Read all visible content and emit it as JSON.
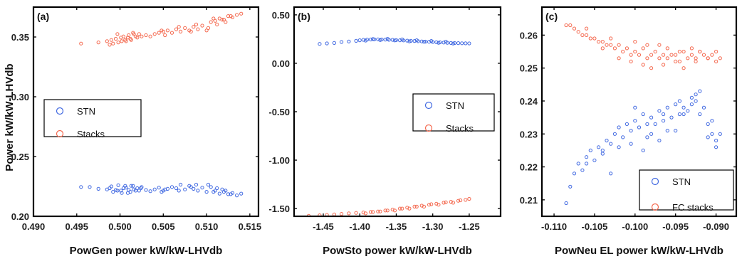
{
  "ylabel_shared": "Power kW/kW-LHVdb",
  "colors": {
    "stn": "#4169e1",
    "stacks": "#f4694f",
    "axis": "#000000"
  },
  "chart_data": [
    {
      "type": "scatter",
      "panel_label": "(a)",
      "xlabel": "PowGen power kW/kW-LHVdb",
      "ylabel": "Power kW/kW-LHVdb",
      "xlim": [
        0.49,
        0.516
      ],
      "ylim": [
        0.2,
        0.375
      ],
      "xticks": [
        0.49,
        0.495,
        0.5,
        0.505,
        0.51,
        0.515
      ],
      "xtick_labels": [
        "0.490",
        "0.495",
        "0.500",
        "0.505",
        "0.510",
        "0.515"
      ],
      "yticks": [
        0.2,
        0.25,
        0.3,
        0.35
      ],
      "ytick_labels": [
        "0.20",
        "0.25",
        "0.30",
        "0.35"
      ],
      "legend": {
        "position": "center-left",
        "entries": [
          "STN",
          "Stacks"
        ]
      },
      "series": [
        {
          "name": "STN",
          "color": "#4169e1",
          "x": [
            0.4955,
            0.4965,
            0.4975,
            0.4985,
            0.499,
            0.4995,
            0.4998,
            0.5001,
            0.5004,
            0.5007,
            0.501,
            0.5013,
            0.5016,
            0.502,
            0.5025,
            0.503,
            0.5035,
            0.504,
            0.5045,
            0.505,
            0.5055,
            0.506,
            0.5065,
            0.507,
            0.5075,
            0.508,
            0.5085,
            0.509,
            0.5095,
            0.51,
            0.5105,
            0.511,
            0.5115,
            0.512,
            0.5125,
            0.513,
            0.5135,
            0.514,
            0.4992,
            0.5002,
            0.5012,
            0.5022,
            0.5052,
            0.5082,
            0.5102,
            0.5112,
            0.5122,
            0.4988,
            0.5006,
            0.5018,
            0.5048,
            0.5068,
            0.5088,
            0.5108,
            0.5118,
            0.5128,
            0.5015,
            0.5009,
            0.4997,
            0.5024
          ],
          "y": [
            0.2245,
            0.2245,
            0.223,
            0.2225,
            0.225,
            0.222,
            0.226,
            0.2215,
            0.2235,
            0.224,
            0.222,
            0.2255,
            0.2225,
            0.2235,
            0.2245,
            0.222,
            0.221,
            0.2225,
            0.224,
            0.2215,
            0.223,
            0.2245,
            0.2235,
            0.2265,
            0.2225,
            0.2255,
            0.223,
            0.2215,
            0.224,
            0.2205,
            0.2245,
            0.2215,
            0.219,
            0.2205,
            0.2185,
            0.2195,
            0.2175,
            0.219,
            0.2205,
            0.2195,
            0.2205,
            0.2215,
            0.2225,
            0.2245,
            0.2265,
            0.2235,
            0.2215,
            0.2235,
            0.2255,
            0.2215,
            0.2205,
            0.2215,
            0.2265,
            0.2205,
            0.2225,
            0.2185,
            0.2255,
            0.2195,
            0.2215,
            0.2235
          ]
        },
        {
          "name": "Stacks",
          "color": "#f4694f",
          "x": [
            0.4955,
            0.4975,
            0.4985,
            0.499,
            0.4995,
            0.4998,
            0.5001,
            0.5004,
            0.5007,
            0.501,
            0.5013,
            0.5016,
            0.502,
            0.5025,
            0.503,
            0.5035,
            0.504,
            0.5045,
            0.505,
            0.5055,
            0.506,
            0.5065,
            0.507,
            0.5075,
            0.508,
            0.5085,
            0.509,
            0.5095,
            0.51,
            0.5105,
            0.511,
            0.5115,
            0.512,
            0.5125,
            0.513,
            0.5135,
            0.514,
            0.4992,
            0.5002,
            0.5012,
            0.5022,
            0.5052,
            0.5082,
            0.5102,
            0.5112,
            0.5122,
            0.4988,
            0.5006,
            0.5018,
            0.5048,
            0.5068,
            0.5088,
            0.5108,
            0.5118,
            0.5128,
            0.5015,
            0.5009,
            0.4997
          ],
          "y": [
            0.3445,
            0.3455,
            0.3465,
            0.3475,
            0.3485,
            0.3455,
            0.3495,
            0.3505,
            0.3465,
            0.3515,
            0.3475,
            0.3525,
            0.3495,
            0.3505,
            0.3515,
            0.3505,
            0.3525,
            0.3535,
            0.3545,
            0.3555,
            0.3535,
            0.3565,
            0.3545,
            0.3575,
            0.3555,
            0.3585,
            0.3565,
            0.3595,
            0.3555,
            0.3625,
            0.3635,
            0.3655,
            0.3645,
            0.3675,
            0.3665,
            0.3685,
            0.3695,
            0.3445,
            0.3465,
            0.3485,
            0.3525,
            0.3515,
            0.3545,
            0.3575,
            0.3605,
            0.3625,
            0.3435,
            0.3475,
            0.3505,
            0.3555,
            0.3585,
            0.3605,
            0.3655,
            0.3645,
            0.3675,
            0.3535,
            0.3495,
            0.3525
          ]
        }
      ]
    },
    {
      "type": "scatter",
      "panel_label": "(b)",
      "xlabel": "PowSto power kW/kW-LHVdb",
      "xlim": [
        -1.49,
        -1.207
      ],
      "ylim": [
        -1.58,
        0.58
      ],
      "xticks": [
        -1.45,
        -1.4,
        -1.35,
        -1.3,
        -1.25
      ],
      "xtick_labels": [
        "-1.45",
        "-1.40",
        "-1.35",
        "-1.30",
        "-1.25"
      ],
      "yticks": [
        -1.5,
        -1.0,
        -0.5,
        0.0,
        0.5
      ],
      "ytick_labels": [
        "-1.50",
        "-1.00",
        "-0.50",
        "0.00",
        "0.50"
      ],
      "legend": {
        "position": "center-right",
        "entries": [
          "STN",
          "Stacks"
        ]
      },
      "series": [
        {
          "name": "STN",
          "color": "#4169e1",
          "x": [
            -1.455,
            -1.445,
            -1.435,
            -1.425,
            -1.415,
            -1.405,
            -1.4,
            -1.395,
            -1.39,
            -1.385,
            -1.38,
            -1.375,
            -1.37,
            -1.365,
            -1.36,
            -1.355,
            -1.35,
            -1.345,
            -1.34,
            -1.335,
            -1.33,
            -1.325,
            -1.32,
            -1.315,
            -1.31,
            -1.305,
            -1.3,
            -1.295,
            -1.29,
            -1.285,
            -1.28,
            -1.275,
            -1.27,
            -1.265,
            -1.26,
            -1.255,
            -1.25,
            -1.392,
            -1.372,
            -1.352,
            -1.332,
            -1.312,
            -1.292,
            -1.272,
            -1.382,
            -1.362,
            -1.342,
            -1.322,
            -1.302,
            -1.282
          ],
          "y": [
            0.2,
            0.205,
            0.21,
            0.22,
            0.225,
            0.232,
            0.238,
            0.242,
            0.245,
            0.246,
            0.247,
            0.247,
            0.246,
            0.245,
            0.243,
            0.242,
            0.24,
            0.238,
            0.236,
            0.234,
            0.232,
            0.23,
            0.228,
            0.226,
            0.224,
            0.222,
            0.22,
            0.218,
            0.216,
            0.214,
            0.212,
            0.21,
            0.209,
            0.208,
            0.207,
            0.206,
            0.205,
            0.235,
            0.24,
            0.236,
            0.226,
            0.222,
            0.212,
            0.204,
            0.25,
            0.252,
            0.247,
            0.238,
            0.23,
            0.224
          ]
        },
        {
          "name": "Stacks",
          "color": "#f4694f",
          "x": [
            -1.47,
            -1.455,
            -1.445,
            -1.435,
            -1.425,
            -1.415,
            -1.405,
            -1.395,
            -1.385,
            -1.375,
            -1.365,
            -1.355,
            -1.345,
            -1.335,
            -1.325,
            -1.315,
            -1.305,
            -1.295,
            -1.285,
            -1.275,
            -1.265,
            -1.255,
            -1.25,
            -1.392,
            -1.372,
            -1.352,
            -1.332,
            -1.312,
            -1.292,
            -1.272,
            -1.382,
            -1.362,
            -1.342,
            -1.322,
            -1.302,
            -1.282,
            -1.262
          ],
          "y": [
            -1.575,
            -1.57,
            -1.565,
            -1.56,
            -1.555,
            -1.55,
            -1.545,
            -1.54,
            -1.535,
            -1.53,
            -1.52,
            -1.51,
            -1.5,
            -1.49,
            -1.48,
            -1.47,
            -1.46,
            -1.45,
            -1.44,
            -1.43,
            -1.42,
            -1.41,
            -1.4,
            -1.55,
            -1.53,
            -1.52,
            -1.5,
            -1.48,
            -1.46,
            -1.44,
            -1.535,
            -1.52,
            -1.5,
            -1.48,
            -1.455,
            -1.435,
            -1.415
          ]
        }
      ]
    },
    {
      "type": "scatter",
      "panel_label": "(c)",
      "xlabel": "PowNeu EL power kW/kW-LHVdb",
      "xlim": [
        -0.1115,
        -0.0875
      ],
      "ylim": [
        0.205,
        0.2685
      ],
      "xticks": [
        -0.11,
        -0.105,
        -0.1,
        -0.095,
        -0.09
      ],
      "xtick_labels": [
        "-0.110",
        "-0.105",
        "-0.100",
        "-0.095",
        "-0.090"
      ],
      "yticks": [
        0.21,
        0.22,
        0.23,
        0.24,
        0.25,
        0.26
      ],
      "ytick_labels": [
        "0.21",
        "0.22",
        "0.23",
        "0.24",
        "0.25",
        "0.26"
      ],
      "legend": {
        "position": "bottom-right",
        "entries": [
          "STN",
          "FC stacks"
        ]
      },
      "series": [
        {
          "name": "STN",
          "color": "#4169e1",
          "x": [
            -0.1085,
            -0.108,
            -0.1075,
            -0.107,
            -0.1065,
            -0.106,
            -0.1055,
            -0.105,
            -0.1045,
            -0.104,
            -0.1035,
            -0.103,
            -0.1025,
            -0.102,
            -0.1015,
            -0.101,
            -0.1005,
            -0.1,
            -0.0995,
            -0.099,
            -0.0985,
            -0.098,
            -0.0975,
            -0.097,
            -0.0965,
            -0.096,
            -0.0955,
            -0.095,
            -0.0945,
            -0.094,
            -0.0935,
            -0.093,
            -0.0925,
            -0.092,
            -0.0915,
            -0.091,
            -0.0905,
            -0.09,
            -0.0895,
            -0.106,
            -0.104,
            -0.102,
            -0.1,
            -0.098,
            -0.096,
            -0.094,
            -0.092,
            -0.09,
            -0.103,
            -0.099,
            -0.097,
            -0.095,
            -0.093,
            -0.091,
            -0.1005,
            -0.0985,
            -0.0965,
            -0.0945,
            -0.0925,
            -0.0905
          ],
          "y": [
            0.209,
            0.214,
            0.218,
            0.221,
            0.219,
            0.223,
            0.225,
            0.222,
            0.226,
            0.225,
            0.228,
            0.227,
            0.23,
            0.232,
            0.229,
            0.233,
            0.231,
            0.234,
            0.232,
            0.236,
            0.229,
            0.235,
            0.233,
            0.237,
            0.234,
            0.238,
            0.235,
            0.239,
            0.236,
            0.238,
            0.237,
            0.239,
            0.24,
            0.236,
            0.238,
            0.229,
            0.234,
            0.228,
            0.23,
            0.221,
            0.224,
            0.226,
            0.238,
            0.23,
            0.231,
            0.236,
            0.243,
            0.226,
            0.218,
            0.225,
            0.228,
            0.231,
            0.241,
            0.233,
            0.227,
            0.233,
            0.236,
            0.24,
            0.242,
            0.23
          ]
        },
        {
          "name": "FC stacks",
          "color": "#f4694f",
          "x": [
            -0.1085,
            -0.108,
            -0.1075,
            -0.107,
            -0.1065,
            -0.106,
            -0.1055,
            -0.105,
            -0.1045,
            -0.104,
            -0.1035,
            -0.103,
            -0.1025,
            -0.102,
            -0.1015,
            -0.101,
            -0.1005,
            -0.1,
            -0.0995,
            -0.099,
            -0.0985,
            -0.098,
            -0.0975,
            -0.097,
            -0.0965,
            -0.096,
            -0.0955,
            -0.095,
            -0.0945,
            -0.094,
            -0.0935,
            -0.093,
            -0.0925,
            -0.092,
            -0.0915,
            -0.091,
            -0.0905,
            -0.09,
            -0.0895,
            -0.106,
            -0.104,
            -0.102,
            -0.1,
            -0.098,
            -0.096,
            -0.094,
            -0.092,
            -0.09,
            -0.103,
            -0.099,
            -0.097,
            -0.095,
            -0.093,
            -0.091,
            -0.1005,
            -0.0985,
            -0.0965,
            -0.0945,
            -0.0925
          ],
          "y": [
            0.263,
            0.263,
            0.262,
            0.261,
            0.26,
            0.26,
            0.259,
            0.259,
            0.258,
            0.258,
            0.257,
            0.257,
            0.256,
            0.257,
            0.255,
            0.256,
            0.254,
            0.255,
            0.254,
            0.256,
            0.253,
            0.254,
            0.255,
            0.253,
            0.254,
            0.253,
            0.254,
            0.254,
            0.252,
            0.255,
            0.253,
            0.254,
            0.253,
            0.255,
            0.254,
            0.253,
            0.254,
            0.255,
            0.253,
            0.262,
            0.256,
            0.253,
            0.258,
            0.25,
            0.256,
            0.25,
            0.255,
            0.252,
            0.259,
            0.251,
            0.257,
            0.252,
            0.256,
            0.253,
            0.252,
            0.257,
            0.251,
            0.255,
            0.252
          ]
        }
      ]
    }
  ]
}
